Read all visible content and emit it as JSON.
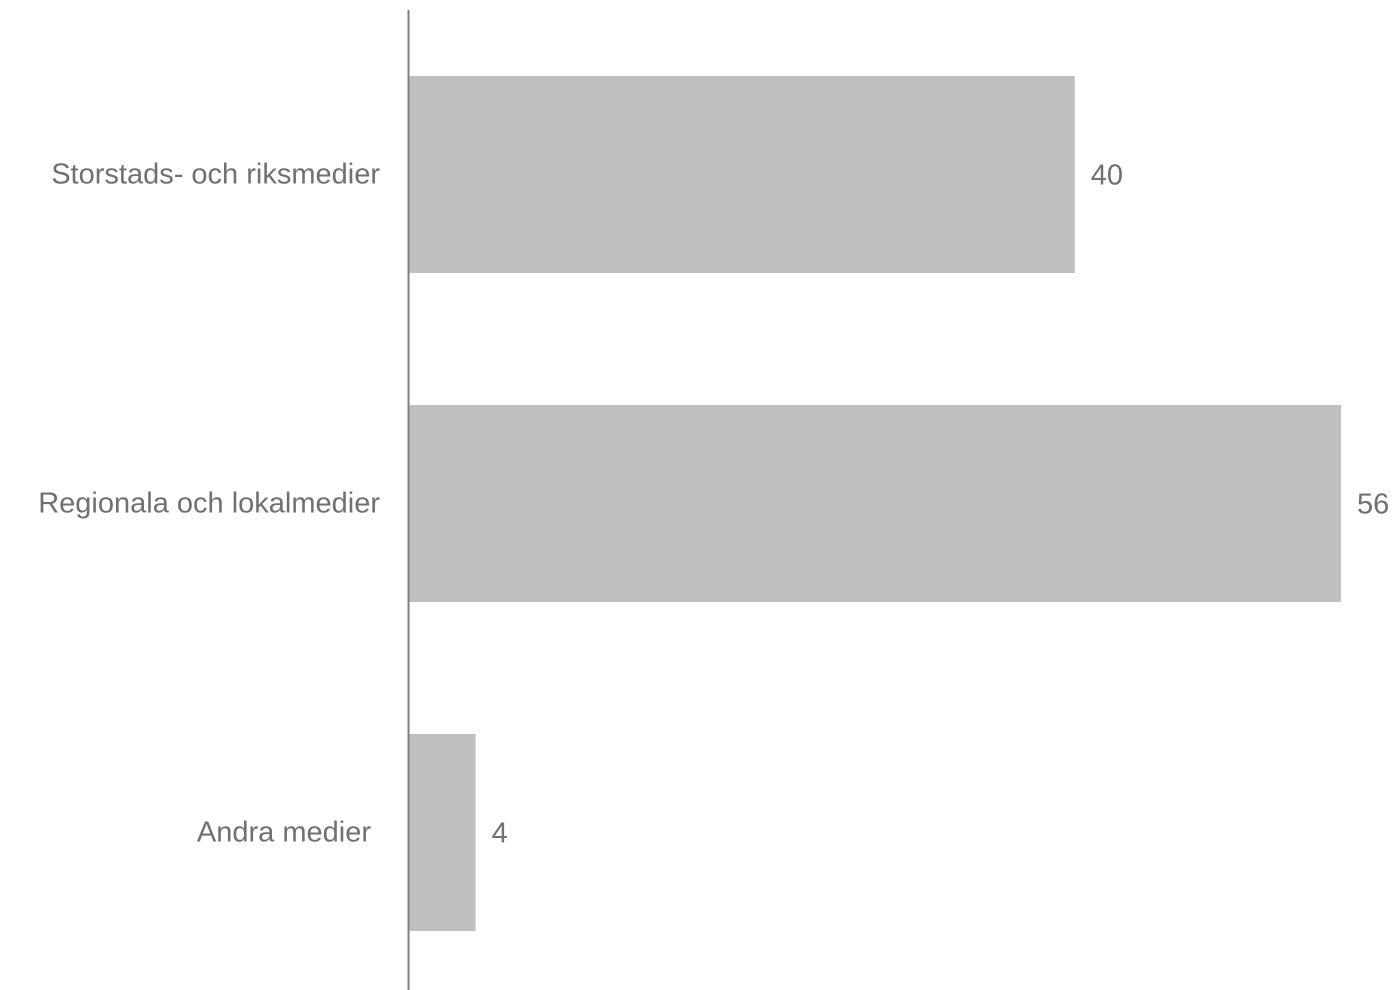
{
  "chart_data": {
    "type": "bar",
    "orientation": "horizontal",
    "categories": [
      "Storstads- och riksmedier",
      "Regionala och lokalmedier",
      "Andra medier"
    ],
    "values": [
      40,
      56,
      4
    ],
    "value_labels": [
      "40",
      "56",
      "4"
    ],
    "title": "",
    "xlabel": "",
    "ylabel": "",
    "xlim": [
      0,
      56
    ],
    "grid": false,
    "legend": "none",
    "colors": {
      "bar": "#bfbfbf",
      "axis": "#7f7f7f",
      "text": "#707070"
    }
  }
}
